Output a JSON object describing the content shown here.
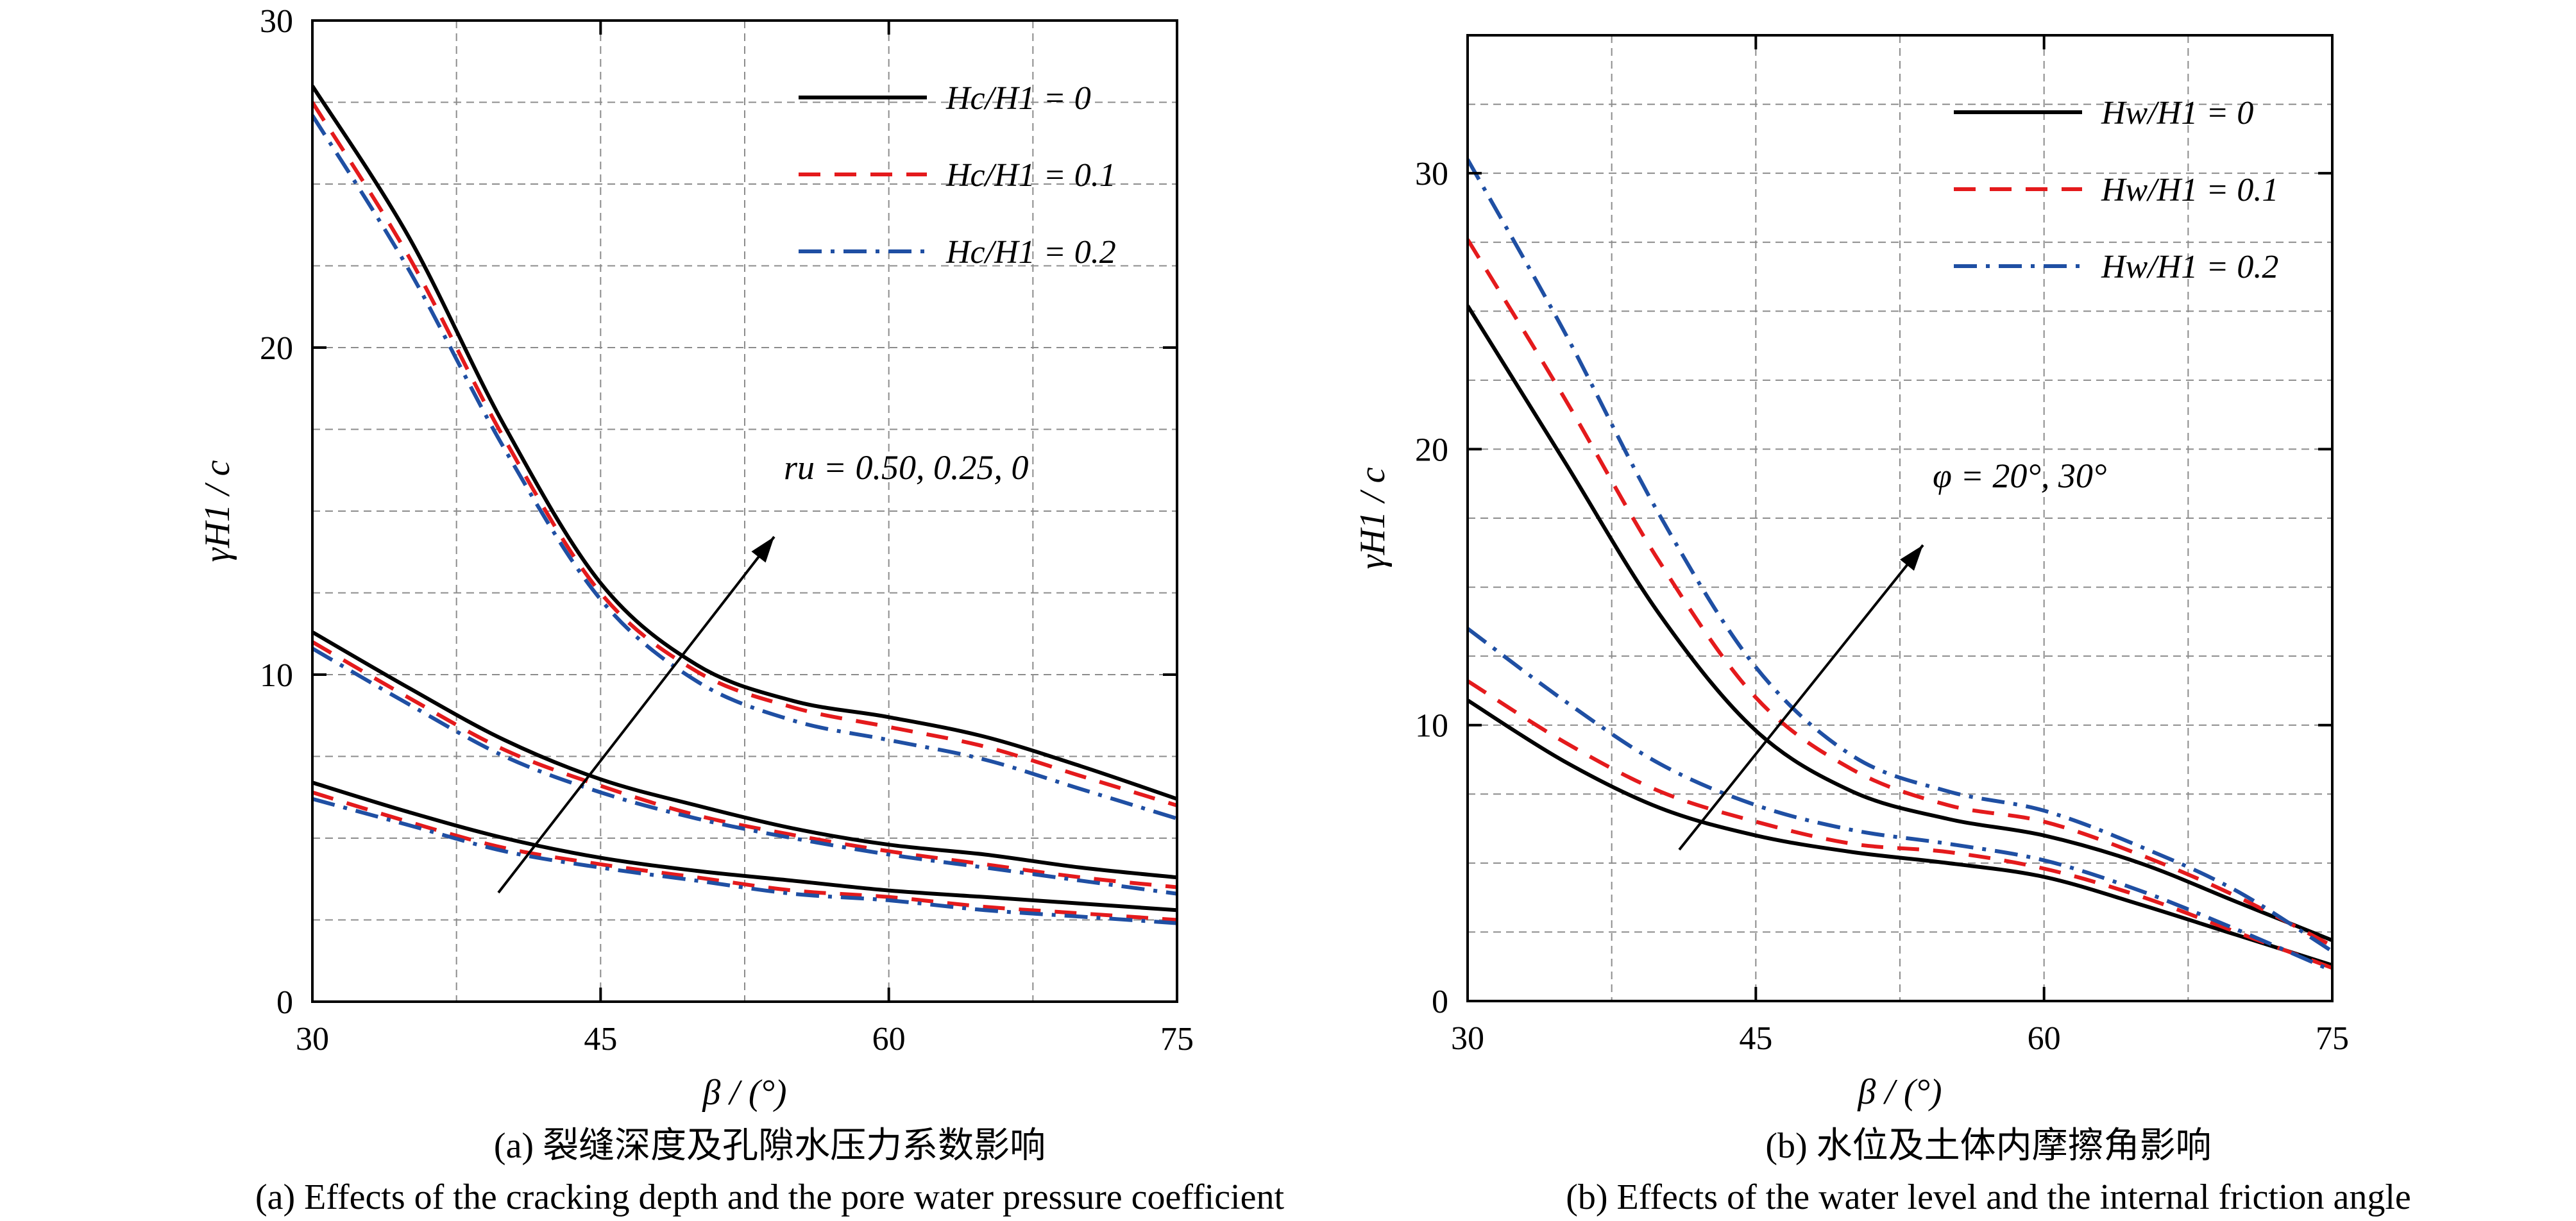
{
  "chart_data": [
    {
      "type": "line",
      "panel": "a",
      "xlabel": "β / (°)",
      "ylabel": "γH1 / c",
      "xlim": [
        30,
        75
      ],
      "ylim": [
        0,
        30
      ],
      "xticks": [
        30,
        45,
        60,
        75
      ],
      "yticks": [
        0,
        10,
        20,
        30
      ],
      "grid": true,
      "legend_position": "top-right",
      "legend": [
        "Hc/H1 = 0",
        "Hc/H1 = 0.1",
        "Hc/H1 = 0.2"
      ],
      "annotation": "ru = 0.50, 0.25, 0",
      "caption_cn": "(a) 裂缝深度及孔隙水压力系数影响",
      "caption_en": "(a) Effects of the cracking depth and the pore water pressure coefficient",
      "x": [
        30,
        35,
        40,
        45,
        50,
        55,
        60,
        65,
        70,
        75
      ],
      "series": [
        {
          "name": "Hc/H1 = 0",
          "group": "ru = 0",
          "color": "#000000",
          "dash": "solid",
          "values": [
            28.0,
            23.4,
            17.6,
            12.8,
            10.3,
            9.2,
            8.7,
            8.1,
            7.2,
            6.2
          ]
        },
        {
          "name": "Hc/H1 = 0.1",
          "group": "ru = 0",
          "color": "#e41a1c",
          "dash": "dashed",
          "values": [
            27.5,
            22.8,
            17.2,
            12.5,
            10.1,
            9.0,
            8.4,
            7.8,
            6.9,
            6.0
          ]
        },
        {
          "name": "Hc/H1 = 0.2",
          "group": "ru = 0",
          "color": "#1f4fa3",
          "dash": "dashdot",
          "values": [
            27.1,
            22.4,
            16.9,
            12.3,
            9.8,
            8.6,
            8.0,
            7.4,
            6.5,
            5.6
          ]
        },
        {
          "name": "Hc/H1 = 0",
          "group": "ru = 0.25",
          "color": "#000000",
          "dash": "solid",
          "values": [
            11.3,
            9.6,
            8.0,
            6.8,
            6.0,
            5.3,
            4.8,
            4.5,
            4.1,
            3.8
          ]
        },
        {
          "name": "Hc/H1 = 0.1",
          "group": "ru = 0.25",
          "color": "#e41a1c",
          "dash": "dashed",
          "values": [
            11.0,
            9.3,
            7.7,
            6.6,
            5.7,
            5.1,
            4.6,
            4.2,
            3.8,
            3.5
          ]
        },
        {
          "name": "Hc/H1 = 0.2",
          "group": "ru = 0.25",
          "color": "#1f4fa3",
          "dash": "dashdot",
          "values": [
            10.8,
            9.1,
            7.5,
            6.4,
            5.6,
            5.0,
            4.5,
            4.1,
            3.7,
            3.3
          ]
        },
        {
          "name": "Hc/H1 = 0",
          "group": "ru = 0.50",
          "color": "#000000",
          "dash": "solid",
          "values": [
            6.7,
            5.8,
            5.0,
            4.4,
            4.0,
            3.7,
            3.4,
            3.2,
            3.0,
            2.8
          ]
        },
        {
          "name": "Hc/H1 = 0.1",
          "group": "ru = 0.50",
          "color": "#e41a1c",
          "dash": "dashed",
          "values": [
            6.4,
            5.5,
            4.7,
            4.2,
            3.8,
            3.4,
            3.2,
            2.9,
            2.7,
            2.5
          ]
        },
        {
          "name": "Hc/H1 = 0.2",
          "group": "ru = 0.50",
          "color": "#1f4fa3",
          "dash": "dashdot",
          "values": [
            6.2,
            5.4,
            4.6,
            4.1,
            3.7,
            3.3,
            3.1,
            2.8,
            2.6,
            2.4
          ]
        }
      ]
    },
    {
      "type": "line",
      "panel": "b",
      "xlabel": "β / (°)",
      "ylabel": "γH1 / c",
      "xlim": [
        30,
        75
      ],
      "ylim": [
        0,
        35
      ],
      "xticks": [
        30,
        45,
        60,
        75
      ],
      "yticks": [
        0,
        10,
        20,
        30
      ],
      "grid": true,
      "legend_position": "top-right",
      "legend": [
        "Hw/H1 = 0",
        "Hw/H1 = 0.1",
        "Hw/H1 = 0.2"
      ],
      "annotation": "φ = 20°, 30°",
      "caption_cn": "(b) 水位及土体内摩擦角影响",
      "caption_en": "(b) Effects of the water level and the internal friction angle",
      "x": [
        30,
        35,
        40,
        45,
        50,
        55,
        60,
        65,
        70,
        75
      ],
      "series": [
        {
          "name": "Hw/H1 = 0",
          "group": "φ = 30°",
          "color": "#000000",
          "dash": "solid",
          "values": [
            25.2,
            19.6,
            14.0,
            9.8,
            7.6,
            6.6,
            6.0,
            5.0,
            3.6,
            2.2
          ]
        },
        {
          "name": "Hw/H1 = 0.1",
          "group": "φ = 30°",
          "color": "#e41a1c",
          "dash": "dashed",
          "values": [
            27.6,
            21.9,
            15.9,
            11.0,
            8.4,
            7.1,
            6.5,
            5.3,
            3.8,
            2.0
          ]
        },
        {
          "name": "Hw/H1 = 0.2",
          "group": "φ = 30°",
          "color": "#1f4fa3",
          "dash": "dashdot",
          "values": [
            30.5,
            24.3,
            17.6,
            12.1,
            8.9,
            7.6,
            6.9,
            5.6,
            4.0,
            1.8
          ]
        },
        {
          "name": "Hw/H1 = 0",
          "group": "φ = 20°",
          "color": "#000000",
          "dash": "solid",
          "values": [
            10.9,
            8.7,
            7.0,
            6.0,
            5.4,
            5.0,
            4.5,
            3.5,
            2.4,
            1.3
          ]
        },
        {
          "name": "Hw/H1 = 0.1",
          "group": "φ = 20°",
          "color": "#e41a1c",
          "dash": "dashed",
          "values": [
            11.6,
            9.4,
            7.6,
            6.5,
            5.7,
            5.4,
            4.8,
            3.8,
            2.5,
            1.2
          ]
        },
        {
          "name": "Hw/H1 = 0.2",
          "group": "φ = 20°",
          "color": "#1f4fa3",
          "dash": "dashdot",
          "values": [
            13.5,
            10.9,
            8.6,
            7.1,
            6.2,
            5.7,
            5.1,
            4.0,
            2.6,
            1.1
          ]
        }
      ]
    }
  ]
}
